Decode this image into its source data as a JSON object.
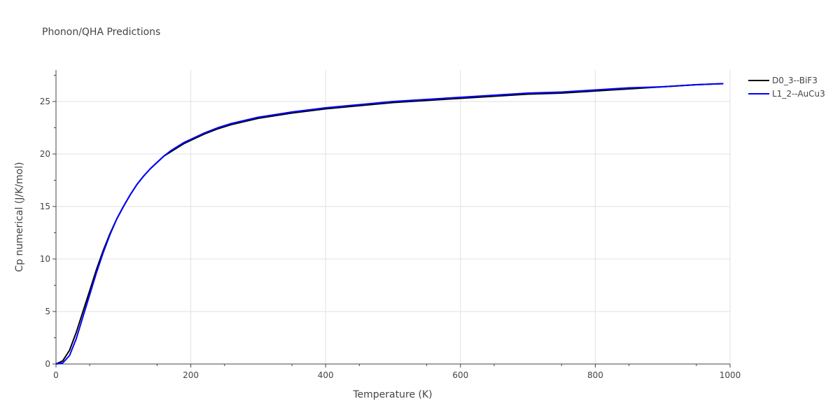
{
  "chart_data": {
    "type": "line",
    "title": "Phonon/QHA Predictions",
    "xlabel": "Temperature (K)",
    "ylabel": "Cp numerical (J/K/mol)",
    "xlim": [
      0,
      1000
    ],
    "ylim": [
      0,
      28
    ],
    "xticks": [
      0,
      200,
      400,
      600,
      800,
      1000
    ],
    "yticks": [
      0,
      5,
      10,
      15,
      20,
      25
    ],
    "xtick_labels": [
      "0",
      "200",
      "400",
      "600",
      "800",
      "1000"
    ],
    "ytick_labels": [
      "0",
      "5",
      "10",
      "15",
      "20",
      "25"
    ],
    "grid": true,
    "legend_position": "top-right",
    "series": [
      {
        "name": "D0_3--BiF3",
        "color": "#000000",
        "x": [
          0,
          10,
          20,
          30,
          40,
          50,
          60,
          70,
          80,
          90,
          100,
          110,
          120,
          130,
          140,
          150,
          160,
          170,
          180,
          190,
          200,
          220,
          240,
          260,
          280,
          300,
          350,
          400,
          450,
          500,
          550,
          600,
          650,
          700,
          750,
          800,
          850,
          900,
          950,
          990
        ],
        "y": [
          0,
          0.3,
          1.3,
          3.0,
          5.0,
          7.0,
          9.0,
          10.8,
          12.4,
          13.8,
          15.0,
          16.1,
          17.1,
          17.9,
          18.6,
          19.2,
          19.8,
          20.2,
          20.6,
          21.0,
          21.3,
          21.9,
          22.4,
          22.8,
          23.1,
          23.4,
          23.9,
          24.3,
          24.6,
          24.9,
          25.1,
          25.3,
          25.5,
          25.7,
          25.8,
          26.0,
          26.2,
          26.4,
          26.6,
          26.7
        ]
      },
      {
        "name": "L1_2--AuCu3",
        "color": "#0000ff",
        "x": [
          0,
          10,
          20,
          30,
          40,
          50,
          60,
          70,
          80,
          90,
          100,
          110,
          120,
          130,
          140,
          150,
          160,
          170,
          180,
          190,
          200,
          220,
          240,
          260,
          280,
          300,
          350,
          400,
          450,
          500,
          550,
          600,
          650,
          700,
          750,
          800,
          850,
          900,
          950,
          990
        ],
        "y": [
          0,
          0.1,
          0.8,
          2.4,
          4.5,
          6.6,
          8.7,
          10.6,
          12.3,
          13.8,
          15.0,
          16.1,
          17.1,
          17.9,
          18.6,
          19.2,
          19.8,
          20.3,
          20.7,
          21.1,
          21.4,
          22.0,
          22.5,
          22.9,
          23.2,
          23.5,
          24.0,
          24.4,
          24.7,
          25.0,
          25.2,
          25.4,
          25.6,
          25.8,
          25.9,
          26.1,
          26.3,
          26.4,
          26.6,
          26.7
        ]
      }
    ]
  }
}
